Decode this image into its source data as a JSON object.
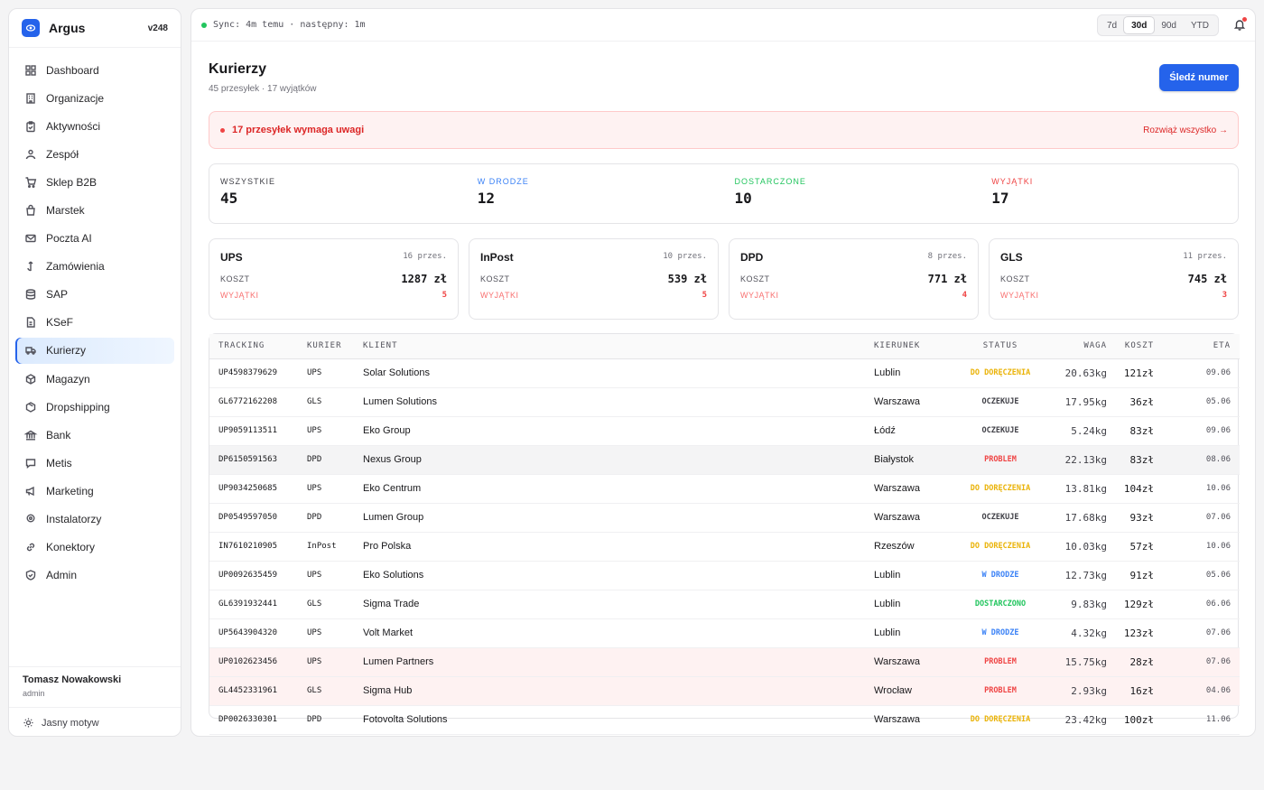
{
  "brand": {
    "name": "Argus",
    "version": "v248"
  },
  "nav": [
    {
      "label": "Dashboard",
      "icon": "dashboard-icon"
    },
    {
      "label": "Organizacje",
      "icon": "building-icon"
    },
    {
      "label": "Aktywności",
      "icon": "clipboard-icon"
    },
    {
      "label": "Zespół",
      "icon": "users-icon"
    },
    {
      "label": "Sklep B2B",
      "icon": "cart-icon"
    },
    {
      "label": "Marstek",
      "icon": "bag-icon"
    },
    {
      "label": "Poczta AI",
      "icon": "mail-icon"
    },
    {
      "label": "Zamówienia",
      "icon": "orders-icon"
    },
    {
      "label": "SAP",
      "icon": "database-icon"
    },
    {
      "label": "KSeF",
      "icon": "document-icon"
    },
    {
      "label": "Kurierzy",
      "icon": "truck-icon"
    },
    {
      "label": "Magazyn",
      "icon": "box-icon"
    },
    {
      "label": "Dropshipping",
      "icon": "package-icon"
    },
    {
      "label": "Bank",
      "icon": "bank-icon"
    },
    {
      "label": "Metis",
      "icon": "chat-icon"
    },
    {
      "label": "Marketing",
      "icon": "megaphone-icon"
    },
    {
      "label": "Instalatorzy",
      "icon": "pin-icon"
    },
    {
      "label": "Konektory",
      "icon": "link-icon"
    },
    {
      "label": "Admin",
      "icon": "shield-icon"
    }
  ],
  "active_nav": "Kurierzy",
  "user": {
    "name": "Tomasz Nowakowski",
    "role": "admin"
  },
  "theme_label": "Jasny motyw",
  "topbar": {
    "sync": "Sync: 4m temu · następny: 1m",
    "ranges": [
      "7d",
      "30d",
      "90d",
      "YTD"
    ],
    "active_range": "30d"
  },
  "page": {
    "title": "Kurierzy",
    "subtitle": "45 przesyłek · 17 wyjątków",
    "track_button": "Śledź numer"
  },
  "alert": {
    "text": "17 przesyłek wymaga uwagi",
    "link": "Rozwiąż wszystko →"
  },
  "stats": [
    {
      "label": "WSZYSTKIE",
      "value": "45",
      "color": "#3f3f46"
    },
    {
      "label": "W DRODZE",
      "value": "12",
      "color": "#3b82f6"
    },
    {
      "label": "DOSTARCZONE",
      "value": "10",
      "color": "#22c55e"
    },
    {
      "label": "WYJĄTKI",
      "value": "17",
      "color": "#ef4444"
    }
  ],
  "couriers": [
    {
      "name": "UPS",
      "count": "16 przes.",
      "cost_label": "KOSZT",
      "cost": "1287 zł",
      "exc_label": "WYJĄTKI",
      "exceptions": "5"
    },
    {
      "name": "InPost",
      "count": "10 przes.",
      "cost_label": "KOSZT",
      "cost": "539 zł",
      "exc_label": "WYJĄTKI",
      "exceptions": "5"
    },
    {
      "name": "DPD",
      "count": "8 przes.",
      "cost_label": "KOSZT",
      "cost": "771 zł",
      "exc_label": "WYJĄTKI",
      "exceptions": "4"
    },
    {
      "name": "GLS",
      "count": "11 przes.",
      "cost_label": "KOSZT",
      "cost": "745 zł",
      "exc_label": "WYJĄTKI",
      "exceptions": "3"
    }
  ],
  "table": {
    "headers": [
      "TRACKING",
      "KURIER",
      "KLIENT",
      "KIERUNEK",
      "STATUS",
      "WAGA",
      "KOSZT",
      "ETA"
    ],
    "status_colors": {
      "DO DORĘCZENIA": "#eab308",
      "OCZEKUJE": "#3f3f46",
      "PROBLEM": "#ef4444",
      "W DRODZE": "#3b82f6",
      "DOSTARCZONO": "#22c55e"
    },
    "rows": [
      {
        "tracking": "UP4598379629",
        "courier": "UPS",
        "client": "Solar Solutions",
        "direction": "Lublin",
        "status": "DO DORĘCZENIA",
        "weight": "20.63kg",
        "cost": "121zł",
        "eta": "09.06",
        "style": ""
      },
      {
        "tracking": "GL6772162208",
        "courier": "GLS",
        "client": "Lumen Solutions",
        "direction": "Warszawa",
        "status": "OCZEKUJE",
        "weight": "17.95kg",
        "cost": "36zł",
        "eta": "05.06",
        "style": ""
      },
      {
        "tracking": "UP9059113511",
        "courier": "UPS",
        "client": "Eko Group",
        "direction": "Łódź",
        "status": "OCZEKUJE",
        "weight": "5.24kg",
        "cost": "83zł",
        "eta": "09.06",
        "style": ""
      },
      {
        "tracking": "DP6150591563",
        "courier": "DPD",
        "client": "Nexus Group",
        "direction": "Białystok",
        "status": "PROBLEM",
        "weight": "22.13kg",
        "cost": "83zł",
        "eta": "08.06",
        "style": "hl"
      },
      {
        "tracking": "UP9034250685",
        "courier": "UPS",
        "client": "Eko Centrum",
        "direction": "Warszawa",
        "status": "DO DORĘCZENIA",
        "weight": "13.81kg",
        "cost": "104zł",
        "eta": "10.06",
        "style": ""
      },
      {
        "tracking": "DP0549597050",
        "courier": "DPD",
        "client": "Lumen Group",
        "direction": "Warszawa",
        "status": "OCZEKUJE",
        "weight": "17.68kg",
        "cost": "93zł",
        "eta": "07.06",
        "style": ""
      },
      {
        "tracking": "IN7610210905",
        "courier": "InPost",
        "client": "Pro Polska",
        "direction": "Rzeszów",
        "status": "DO DORĘCZENIA",
        "weight": "10.03kg",
        "cost": "57zł",
        "eta": "10.06",
        "style": ""
      },
      {
        "tracking": "UP0092635459",
        "courier": "UPS",
        "client": "Eko Solutions",
        "direction": "Lublin",
        "status": "W DRODZE",
        "weight": "12.73kg",
        "cost": "91zł",
        "eta": "05.06",
        "style": ""
      },
      {
        "tracking": "GL6391932441",
        "courier": "GLS",
        "client": "Sigma Trade",
        "direction": "Lublin",
        "status": "DOSTARCZONO",
        "weight": "9.83kg",
        "cost": "129zł",
        "eta": "06.06",
        "style": ""
      },
      {
        "tracking": "UP5643904320",
        "courier": "UPS",
        "client": "Volt Market",
        "direction": "Lublin",
        "status": "W DRODZE",
        "weight": "4.32kg",
        "cost": "123zł",
        "eta": "07.06",
        "style": ""
      },
      {
        "tracking": "UP0102623456",
        "courier": "UPS",
        "client": "Lumen Partners",
        "direction": "Warszawa",
        "status": "PROBLEM",
        "weight": "15.75kg",
        "cost": "28zł",
        "eta": "07.06",
        "style": "warn"
      },
      {
        "tracking": "GL4452331961",
        "courier": "GLS",
        "client": "Sigma Hub",
        "direction": "Wrocław",
        "status": "PROBLEM",
        "weight": "2.93kg",
        "cost": "16zł",
        "eta": "04.06",
        "style": "warn"
      },
      {
        "tracking": "DP0026330301",
        "courier": "DPD",
        "client": "Fotovolta Solutions",
        "direction": "Warszawa",
        "status": "DO DORĘCZENIA",
        "weight": "23.42kg",
        "cost": "100zł",
        "eta": "11.06",
        "style": ""
      }
    ]
  }
}
